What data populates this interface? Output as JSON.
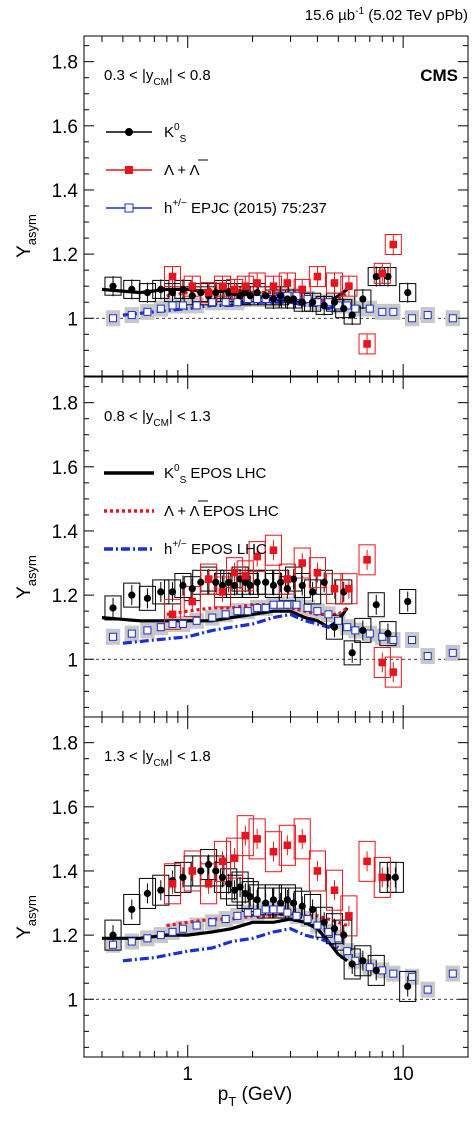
{
  "header": {
    "lumi": "15.6 µb",
    "lumi_exp": "-1",
    "energy": " (5.02 TeV pPb)",
    "experiment": "CMS"
  },
  "x_axis": {
    "label_main": "p",
    "label_sub": "T",
    "label_unit": " (GeV)",
    "scale": "log",
    "range": [
      0.33,
      20
    ],
    "major_ticks": [
      {
        "value": 1,
        "label": "1"
      },
      {
        "value": 10,
        "label": "10"
      }
    ]
  },
  "chart_data": [
    {
      "type": "scatter",
      "panel": 1,
      "rapidity_label": "0.3 < |y",
      "rapidity_sub": "CM",
      "rapidity_end": "| < 0.8",
      "ylabel_main": "Y",
      "ylabel_sub": "asym",
      "ylim": [
        0.82,
        1.88
      ],
      "yticks": [
        "1",
        "1.2",
        "1.4",
        "1.6",
        "1.8"
      ],
      "legend": [
        {
          "kind": "kshort",
          "text_main": "K",
          "text_sup": "0",
          "text_sub": "S",
          "text_tail": ""
        },
        {
          "kind": "lambda",
          "text_main": "Λ + Λ",
          "text_tail": ""
        },
        {
          "kind": "hadron",
          "text_main": "h",
          "text_sup": "+/−",
          "text_tail": " EPJC (2015) 75:237"
        }
      ],
      "series": [
        {
          "name": "K0S",
          "color": "#000000",
          "x": [
            0.45,
            0.55,
            0.65,
            0.75,
            0.85,
            0.95,
            1.05,
            1.15,
            1.25,
            1.35,
            1.45,
            1.55,
            1.65,
            1.75,
            1.85,
            1.95,
            2.1,
            2.3,
            2.5,
            2.7,
            2.9,
            3.1,
            3.4,
            3.8,
            4.3,
            4.8,
            5.3,
            5.8,
            6.5,
            7.5,
            8.5,
            10.5
          ],
          "y": [
            1.1,
            1.09,
            1.08,
            1.09,
            1.08,
            1.09,
            1.07,
            1.08,
            1.07,
            1.08,
            1.09,
            1.08,
            1.08,
            1.07,
            1.08,
            1.07,
            1.08,
            1.07,
            1.06,
            1.07,
            1.06,
            1.06,
            1.05,
            1.05,
            1.04,
            1.05,
            1.03,
            1.01,
            1.06,
            1.13,
            1.13,
            1.08
          ]
        },
        {
          "name": "Lambda",
          "color": "#e8141c",
          "x": [
            0.85,
            1.05,
            1.25,
            1.45,
            1.65,
            1.85,
            2.1,
            2.5,
            2.9,
            3.4,
            4.0,
            4.8,
            5.6,
            6.8,
            8.0,
            9.0
          ],
          "y": [
            1.13,
            1.1,
            1.08,
            1.1,
            1.09,
            1.1,
            1.11,
            1.1,
            1.11,
            1.09,
            1.13,
            1.11,
            1.1,
            0.92,
            1.14,
            1.23
          ]
        },
        {
          "name": "h+/-",
          "color": "#1a2fd6",
          "x": [
            0.45,
            0.55,
            0.65,
            0.75,
            0.85,
            0.95,
            1.1,
            1.3,
            1.5,
            1.7,
            1.9,
            2.1,
            2.3,
            2.5,
            2.7,
            2.9,
            3.2,
            3.6,
            4.0,
            4.5,
            5.0,
            5.5,
            6.0,
            7.0,
            8.0,
            9.0,
            11.0,
            13.0,
            17.0
          ],
          "y": [
            1.0,
            1.01,
            1.02,
            1.03,
            1.04,
            1.04,
            1.04,
            1.05,
            1.05,
            1.05,
            1.06,
            1.06,
            1.06,
            1.06,
            1.07,
            1.07,
            1.07,
            1.06,
            1.05,
            1.05,
            1.04,
            1.04,
            1.03,
            1.03,
            1.02,
            1.02,
            1.0,
            1.01,
            1.0
          ]
        }
      ],
      "model_curves": [
        {
          "name": "K0S EPOS LHC",
          "style": "solid",
          "color": "#000000",
          "x": [
            0.4,
            0.6,
            0.8,
            1.0,
            1.3,
            1.6,
            2.0,
            2.5,
            3.0,
            3.5,
            4.0,
            4.5,
            5.0,
            5.5
          ],
          "y": [
            1.09,
            1.08,
            1.09,
            1.09,
            1.08,
            1.09,
            1.07,
            1.06,
            1.05,
            1.05,
            1.06,
            1.05,
            1.07,
            1.09
          ]
        },
        {
          "name": "Lambda EPOS LHC",
          "style": "dotted",
          "color": "#e8141c",
          "x": [
            0.8,
            1.0,
            1.3,
            1.6,
            2.0,
            2.5,
            3.0,
            3.5,
            4.0,
            4.5,
            5.0,
            5.5
          ],
          "y": [
            1.07,
            1.08,
            1.09,
            1.09,
            1.08,
            1.08,
            1.07,
            1.06,
            1.06,
            1.05,
            1.06,
            1.08
          ]
        },
        {
          "name": "h+/- EPOS LHC",
          "style": "dashdot",
          "color": "#1a2fd6",
          "x": [
            0.5,
            0.7,
            1.0,
            1.3,
            1.6,
            2.0,
            2.5,
            3.0,
            3.5,
            4.0,
            4.5,
            5.0
          ],
          "y": [
            1.01,
            1.02,
            1.03,
            1.04,
            1.04,
            1.05,
            1.05,
            1.05,
            1.04,
            1.04,
            1.03,
            1.04
          ]
        }
      ]
    },
    {
      "type": "scatter",
      "panel": 2,
      "rapidity_label": "0.8 < |y",
      "rapidity_sub": "CM",
      "rapidity_end": "| < 1.3",
      "ylabel_main": "Y",
      "ylabel_sub": "asym",
      "ylim": [
        0.82,
        1.88
      ],
      "yticks": [
        "1",
        "1.2",
        "1.4",
        "1.6",
        "1.8"
      ],
      "legend": [
        {
          "kind": "curve-solid",
          "text_main": "K",
          "text_sup": "0",
          "text_sub": "S",
          "text_tail": " EPOS LHC"
        },
        {
          "kind": "curve-dotted",
          "text_main": "Λ + Λ",
          "text_tail": " EPOS LHC"
        },
        {
          "kind": "curve-dashdot",
          "text_main": "h",
          "text_sup": "+/−",
          "text_tail": " EPOS LHC"
        }
      ],
      "series": [
        {
          "name": "K0S",
          "color": "#000000",
          "x": [
            0.45,
            0.55,
            0.65,
            0.75,
            0.85,
            0.95,
            1.05,
            1.15,
            1.25,
            1.35,
            1.45,
            1.55,
            1.65,
            1.75,
            1.85,
            1.95,
            2.1,
            2.3,
            2.5,
            2.7,
            2.9,
            3.1,
            3.4,
            3.8,
            4.3,
            4.8,
            5.3,
            5.8,
            6.5,
            7.5,
            8.5,
            10.5
          ],
          "y": [
            1.16,
            1.2,
            1.19,
            1.21,
            1.21,
            1.23,
            1.22,
            1.24,
            1.25,
            1.24,
            1.23,
            1.24,
            1.23,
            1.25,
            1.24,
            1.23,
            1.24,
            1.24,
            1.23,
            1.24,
            1.22,
            1.25,
            1.23,
            1.21,
            1.24,
            1.1,
            1.21,
            1.02,
            1.09,
            1.17,
            1.08,
            1.18
          ]
        },
        {
          "name": "Lambda",
          "color": "#e8141c",
          "x": [
            0.85,
            1.05,
            1.25,
            1.45,
            1.65,
            1.85,
            2.1,
            2.5,
            2.9,
            3.4,
            4.0,
            4.8,
            5.6,
            6.8,
            8.0,
            9.0
          ],
          "y": [
            1.14,
            1.18,
            1.25,
            1.21,
            1.27,
            1.26,
            1.32,
            1.34,
            1.25,
            1.3,
            1.27,
            1.22,
            1.22,
            1.31,
            0.99,
            0.96
          ]
        },
        {
          "name": "h+/-",
          "color": "#1a2fd6",
          "x": [
            0.45,
            0.55,
            0.65,
            0.75,
            0.85,
            0.95,
            1.1,
            1.3,
            1.5,
            1.7,
            1.9,
            2.1,
            2.3,
            2.5,
            2.7,
            2.9,
            3.2,
            3.6,
            4.0,
            4.5,
            5.0,
            5.5,
            6.0,
            7.0,
            8.0,
            9.0,
            11.0,
            13.0,
            17.0
          ],
          "y": [
            1.07,
            1.08,
            1.09,
            1.1,
            1.11,
            1.11,
            1.12,
            1.13,
            1.14,
            1.15,
            1.15,
            1.16,
            1.16,
            1.17,
            1.17,
            1.17,
            1.17,
            1.16,
            1.15,
            1.14,
            1.12,
            1.1,
            1.09,
            1.08,
            1.07,
            1.06,
            1.06,
            1.01,
            1.02
          ]
        }
      ],
      "model_curves": [
        {
          "name": "K0S EPOS LHC",
          "style": "solid",
          "color": "#000000",
          "x": [
            0.4,
            0.6,
            0.8,
            1.0,
            1.3,
            1.6,
            2.0,
            2.5,
            3.0,
            3.5,
            4.0,
            4.5,
            5.0,
            5.5
          ],
          "y": [
            1.13,
            1.12,
            1.12,
            1.12,
            1.12,
            1.13,
            1.14,
            1.15,
            1.15,
            1.13,
            1.12,
            1.1,
            1.12,
            1.16
          ]
        },
        {
          "name": "Lambda EPOS LHC",
          "style": "dotted",
          "color": "#e8141c",
          "x": [
            0.8,
            1.0,
            1.3,
            1.6,
            2.0,
            2.5,
            3.0,
            3.5,
            4.0,
            4.5,
            5.0,
            5.5
          ],
          "y": [
            1.14,
            1.15,
            1.16,
            1.16,
            1.17,
            1.17,
            1.16,
            1.15,
            1.14,
            1.14,
            1.14,
            1.16
          ]
        },
        {
          "name": "h+/- EPOS LHC",
          "style": "dashdot",
          "color": "#1a2fd6",
          "x": [
            0.5,
            0.7,
            1.0,
            1.3,
            1.6,
            2.0,
            2.5,
            3.0,
            3.5,
            4.0,
            4.5,
            5.0
          ],
          "y": [
            1.05,
            1.06,
            1.07,
            1.09,
            1.1,
            1.11,
            1.13,
            1.14,
            1.12,
            1.11,
            1.1,
            1.11
          ]
        }
      ]
    },
    {
      "type": "scatter",
      "panel": 3,
      "rapidity_label": "1.3 < |y",
      "rapidity_sub": "CM",
      "rapidity_end": "| < 1.8",
      "ylabel_main": "Y",
      "ylabel_sub": "asym",
      "ylim": [
        0.82,
        1.88
      ],
      "yticks": [
        "1",
        "1.2",
        "1.4",
        "1.6",
        "1.8"
      ],
      "legend": [],
      "series": [
        {
          "name": "K0S",
          "color": "#000000",
          "x": [
            0.45,
            0.55,
            0.65,
            0.75,
            0.85,
            0.95,
            1.05,
            1.15,
            1.25,
            1.35,
            1.45,
            1.55,
            1.65,
            1.75,
            1.85,
            1.95,
            2.1,
            2.3,
            2.5,
            2.7,
            2.9,
            3.1,
            3.4,
            3.8,
            4.3,
            4.8,
            5.3,
            5.8,
            6.5,
            7.5,
            8.5,
            9.2,
            10.5
          ],
          "y": [
            1.2,
            1.28,
            1.33,
            1.34,
            1.37,
            1.38,
            1.4,
            1.4,
            1.42,
            1.4,
            1.38,
            1.36,
            1.34,
            1.35,
            1.33,
            1.32,
            1.31,
            1.3,
            1.31,
            1.3,
            1.31,
            1.3,
            1.29,
            1.28,
            1.24,
            1.22,
            1.2,
            1.11,
            1.12,
            1.09,
            1.38,
            1.38,
            1.04
          ]
        },
        {
          "name": "Lambda",
          "color": "#e8141c",
          "x": [
            0.85,
            1.05,
            1.25,
            1.45,
            1.65,
            1.85,
            2.1,
            2.5,
            2.9,
            3.4,
            4.0,
            4.8,
            5.6,
            6.8,
            8.0
          ],
          "y": [
            1.36,
            1.4,
            1.36,
            1.43,
            1.44,
            1.51,
            1.5,
            1.46,
            1.48,
            1.5,
            1.4,
            1.34,
            1.26,
            1.43,
            1.38
          ]
        },
        {
          "name": "h+/-",
          "color": "#1a2fd6",
          "x": [
            0.45,
            0.55,
            0.65,
            0.75,
            0.85,
            0.95,
            1.1,
            1.3,
            1.5,
            1.7,
            1.9,
            2.1,
            2.3,
            2.5,
            2.7,
            2.9,
            3.2,
            3.6,
            4.0,
            4.5,
            5.0,
            5.5,
            6.0,
            7.0,
            8.0,
            9.0,
            11.0,
            13.0,
            17.0
          ],
          "y": [
            1.17,
            1.18,
            1.19,
            1.2,
            1.21,
            1.22,
            1.23,
            1.24,
            1.25,
            1.26,
            1.27,
            1.27,
            1.28,
            1.28,
            1.28,
            1.27,
            1.26,
            1.25,
            1.23,
            1.21,
            1.19,
            1.15,
            1.12,
            1.1,
            1.09,
            1.08,
            1.07,
            1.03,
            1.08
          ]
        }
      ],
      "model_curves": [
        {
          "name": "K0S EPOS LHC",
          "style": "solid",
          "color": "#000000",
          "x": [
            0.4,
            0.6,
            0.8,
            1.0,
            1.3,
            1.6,
            2.0,
            2.5,
            3.0,
            3.5,
            4.0,
            4.5,
            5.0,
            5.5
          ],
          "y": [
            1.19,
            1.19,
            1.2,
            1.2,
            1.21,
            1.22,
            1.24,
            1.24,
            1.25,
            1.24,
            1.22,
            1.18,
            1.14,
            1.12
          ]
        },
        {
          "name": "Lambda EPOS LHC",
          "style": "dotted",
          "color": "#e8141c",
          "x": [
            0.8,
            1.0,
            1.3,
            1.6,
            2.0,
            2.5,
            3.0,
            3.5,
            4.0,
            4.5,
            5.0,
            5.5
          ],
          "y": [
            1.23,
            1.24,
            1.25,
            1.25,
            1.26,
            1.26,
            1.27,
            1.26,
            1.26,
            1.25,
            1.24,
            1.23
          ]
        },
        {
          "name": "h+/- EPOS LHC",
          "style": "dashdot",
          "color": "#1a2fd6",
          "x": [
            0.5,
            0.7,
            1.0,
            1.3,
            1.6,
            2.0,
            2.5,
            3.0,
            3.5,
            4.0,
            4.5,
            5.0
          ],
          "y": [
            1.12,
            1.13,
            1.15,
            1.16,
            1.18,
            1.19,
            1.21,
            1.22,
            1.2,
            1.19,
            1.18,
            1.16
          ]
        }
      ]
    }
  ]
}
